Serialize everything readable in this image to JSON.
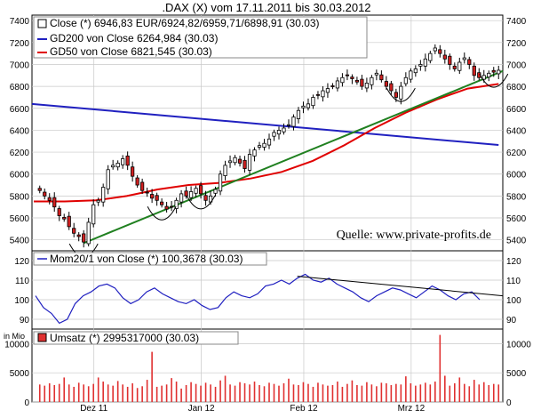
{
  "title": ".DAX (X) vom 17.11.2011 bis 30.03.2012",
  "watermark": "Quelle: www.private-profits.de",
  "x_axis": {
    "labels": [
      "Dez 11",
      "Jan 12",
      "Feb 12",
      "Mrz 12"
    ]
  },
  "colors": {
    "background": "#ffffff",
    "grid": "#c8c8c8",
    "frame": "#000000",
    "gd200": "#2020c0",
    "gd50": "#e00000",
    "trendline": "#208020",
    "candle_up": "#ffffff",
    "candle_down": "#d02020",
    "volume": "#e03030",
    "momentum": "#2020c0",
    "mom_trend": "#000000",
    "annotation_arc": "#000000"
  },
  "chart_data": [
    {
      "type": "candlestick",
      "name": "price",
      "ylim": [
        5300,
        7450
      ],
      "yticks": [
        5400,
        5600,
        5800,
        6000,
        6200,
        6400,
        6600,
        6800,
        7000,
        7200,
        7400
      ],
      "legend": [
        {
          "key": "close",
          "label": "Close (*) 6946,83 EUR/6924,82/6959,71/6898,91 (30.03)"
        },
        {
          "key": "gd200",
          "label": "GD200 von Close 6264,984 (30.03)"
        },
        {
          "key": "gd50",
          "label": "GD50 von Close 6821,545 (30.03)"
        }
      ],
      "close": [
        5850,
        5800,
        5760,
        5700,
        5620,
        5590,
        5520,
        5460,
        5430,
        5380,
        5560,
        5720,
        5760,
        5880,
        6040,
        6080,
        6100,
        6140,
        6080,
        5980,
        5900,
        5850,
        5830,
        5780,
        5760,
        5720,
        5680,
        5700,
        5760,
        5820,
        5800,
        5840,
        5870,
        5820,
        5760,
        5800,
        5860,
        6000,
        6080,
        6120,
        6150,
        6100,
        6050,
        6180,
        6220,
        6260,
        6280,
        6320,
        6380,
        6400,
        6420,
        6450,
        6520,
        6580,
        6620,
        6640,
        6700,
        6720,
        6760,
        6780,
        6800,
        6850,
        6880,
        6900,
        6870,
        6840,
        6800,
        6830,
        6880,
        6920,
        6860,
        6800,
        6760,
        6700,
        6800,
        6880,
        6940,
        6960,
        7000,
        7050,
        7100,
        7150,
        7100,
        7050,
        7000,
        6960,
        7020,
        7060,
        7000,
        6900,
        6880,
        6900,
        6920,
        6930,
        6947
      ],
      "ohlc_note": "open/high/low derived from close for rendering",
      "gd200": {
        "start": 6640,
        "end": 6265
      },
      "gd50": [
        5750,
        5750,
        5760,
        5800,
        5860,
        5900,
        5920,
        5960,
        6020,
        6120,
        6260,
        6420,
        6560,
        6680,
        6780,
        6822
      ],
      "trendline": {
        "start": 5370,
        "end": 6940
      },
      "annotation_arcs": 5
    },
    {
      "type": "line",
      "name": "momentum",
      "legend": "Mom20/1 von Close (*) 100,3678 (30.03)",
      "ylim": [
        85,
        125
      ],
      "yticks": [
        90,
        100,
        110,
        120
      ],
      "values": [
        102,
        96,
        93,
        88,
        90,
        98,
        102,
        104,
        107,
        108,
        106,
        101,
        98,
        100,
        104,
        106,
        103,
        101,
        99,
        98,
        100,
        97,
        95,
        96,
        101,
        104,
        102,
        101,
        103,
        107,
        108,
        110,
        108,
        111,
        113,
        110,
        109,
        111,
        108,
        106,
        104,
        101,
        99,
        102,
        104,
        106,
        105,
        103,
        101,
        104,
        107,
        105,
        102,
        100,
        103,
        104,
        100
      ],
      "trendline": {
        "start": 112,
        "end": 102
      }
    },
    {
      "type": "bar",
      "name": "volume",
      "unit_label": "in Mio",
      "legend": "Umsatz (*) 2995317000 (30.03)",
      "ylim": [
        0,
        12500
      ],
      "yticks": [
        0,
        5000,
        10000
      ],
      "values": [
        3000,
        2800,
        3200,
        2900,
        3100,
        4200,
        3000,
        2600,
        3300,
        3000,
        2700,
        3100,
        4200,
        3500,
        3000,
        2800,
        3600,
        3000,
        2600,
        3200,
        2400,
        2700,
        3800,
        8600,
        2600,
        2800,
        3000,
        4100,
        3500,
        2300,
        2900,
        3400,
        3100,
        2800,
        3300,
        3000,
        2600,
        3700,
        4500,
        3000,
        2800,
        3400,
        3200,
        3000,
        3500,
        2900,
        2700,
        3300,
        3100,
        2800,
        3200,
        4000,
        3000,
        2900,
        3400,
        3100,
        2600,
        3300,
        3000,
        2800,
        2900,
        3500,
        2600,
        3100,
        3700,
        2900,
        2800,
        3400,
        3000,
        2700,
        3300,
        3200,
        2900,
        3100,
        3000,
        4400,
        3200,
        2800,
        3000,
        3300,
        3000,
        3500,
        11500,
        4500,
        2800,
        3200,
        4200,
        3100,
        2700,
        3800,
        3000,
        3400,
        2900,
        3100,
        2995
      ]
    }
  ]
}
